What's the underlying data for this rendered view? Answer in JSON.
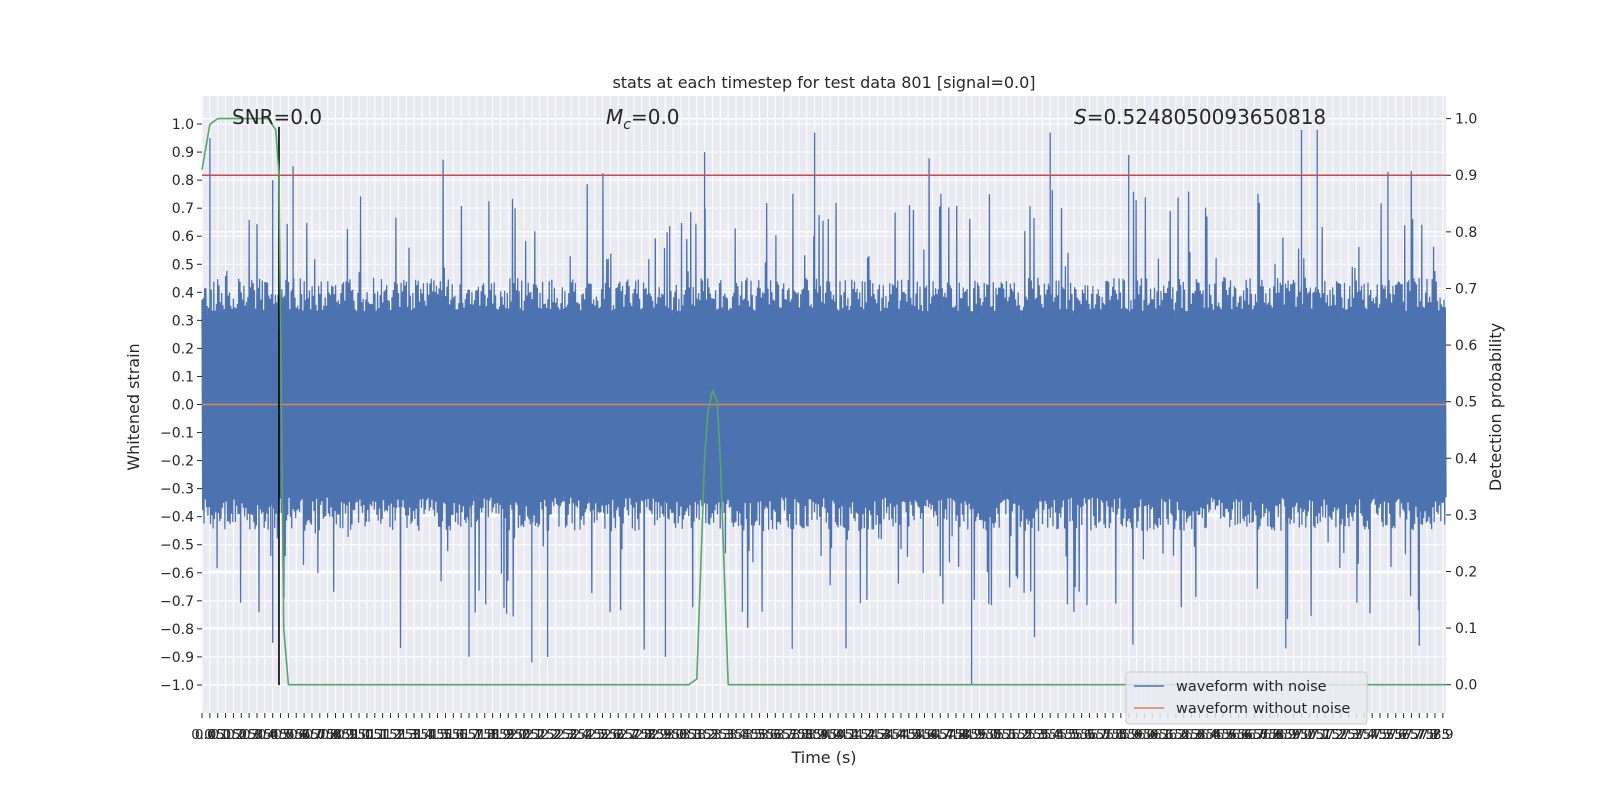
{
  "chart_data": {
    "type": "line",
    "title": "stats at each timestep for test data 801 [signal=0.0]",
    "xlabel": "Time (s)",
    "ylabel": "Whitened strain",
    "ylabel_right": "Detection probability",
    "xlim": [
      0.0,
      7.92
    ],
    "ylim": [
      -1.1,
      1.1
    ],
    "ylim_right": [
      -0.05,
      1.04
    ],
    "x_tick_step": 0.05,
    "x_ticks": [
      "0.0",
      "0.05",
      "0.1",
      "0.15",
      "0.2",
      "0.25",
      "0.3",
      "0.35",
      "0.4",
      "0.45",
      "0.5",
      "0.55",
      "0.6",
      "0.65",
      "0.7",
      "0.75",
      "0.8",
      "0.85",
      "0.9",
      "0.95",
      "1.0",
      "1.05",
      "1.1",
      "1.15",
      "1.2",
      "1.25",
      "1.3",
      "1.35",
      "1.4",
      "1.45",
      "1.5",
      "1.55",
      "1.6",
      "1.65",
      "1.7",
      "1.75",
      "1.8",
      "1.85",
      "1.9",
      "1.95",
      "2.0",
      "2.05",
      "2.1",
      "2.15",
      "2.2",
      "2.25",
      "2.3",
      "2.35",
      "2.4",
      "2.45",
      "2.5",
      "2.55",
      "2.6",
      "2.65",
      "2.7",
      "2.75",
      "2.8",
      "2.85",
      "2.9",
      "2.95",
      "3.0",
      "3.05",
      "3.1",
      "3.15",
      "3.2",
      "3.25",
      "3.3",
      "3.35",
      "3.4",
      "3.45",
      "3.5",
      "3.55",
      "3.6",
      "3.65",
      "3.7",
      "3.75",
      "3.8",
      "3.85",
      "3.9",
      "3.95",
      "4.0",
      "4.05",
      "4.1",
      "4.15",
      "4.2",
      "4.25",
      "4.3",
      "4.35",
      "4.4",
      "4.45",
      "4.5",
      "4.55",
      "4.6",
      "4.65",
      "4.7",
      "4.75",
      "4.8",
      "4.85",
      "4.9",
      "4.95",
      "5.0",
      "5.05",
      "5.1",
      "5.15",
      "5.2",
      "5.25",
      "5.3",
      "5.35",
      "5.4",
      "5.45",
      "5.5",
      "5.55",
      "5.6",
      "5.65",
      "5.7",
      "5.75",
      "5.8",
      "5.85",
      "5.9",
      "5.95",
      "6.0",
      "6.05",
      "6.1",
      "6.15",
      "6.2",
      "6.25",
      "6.3",
      "6.35",
      "6.4",
      "6.45",
      "6.5",
      "6.55",
      "6.6",
      "6.65",
      "6.7",
      "6.75",
      "6.8",
      "6.85",
      "6.9",
      "6.95",
      "7.0",
      "7.05",
      "7.1",
      "7.15",
      "7.2",
      "7.25",
      "7.3",
      "7.35",
      "7.4",
      "7.45",
      "7.5",
      "7.55",
      "7.6",
      "7.65",
      "7.7",
      "7.75",
      "7.8",
      "7.85",
      "7.9"
    ],
    "y_ticks": [
      "1.0",
      "0.9",
      "0.8",
      "0.7",
      "0.6",
      "0.5",
      "0.4",
      "0.3",
      "0.2",
      "0.1",
      "0.0",
      "−0.1",
      "−0.2",
      "−0.3",
      "−0.4",
      "−0.5",
      "−0.6",
      "−0.7",
      "−0.8",
      "−0.9",
      "−1.0"
    ],
    "y_ticks_right": [
      "1.0",
      "0.9",
      "0.8",
      "0.7",
      "0.6",
      "0.5",
      "0.4",
      "0.3",
      "0.2",
      "0.1",
      "0.0"
    ],
    "annotations": {
      "snr": "SNR=0.0",
      "mc_symbol": "M",
      "mc_subscript": "c",
      "mc_value": "=0.0",
      "s_symbol": "S",
      "s_value": "=0.5248050093650818"
    },
    "series": [
      {
        "name": "waveform with noise",
        "color": "#4c72b0",
        "axis": "left",
        "description_of_shape": "dense noise filling roughly -0.4..0.4 with spikes up to ~0.97 and down to -1.0",
        "spikes": [
          {
            "x": 0.05,
            "y": 0.95
          },
          {
            "x": 0.45,
            "y": 0.8
          },
          {
            "x": 0.58,
            "y": 0.85
          },
          {
            "x": 3.2,
            "y": 0.9
          },
          {
            "x": 3.9,
            "y": 0.97
          },
          {
            "x": 5.4,
            "y": 0.97
          },
          {
            "x": 5.9,
            "y": 0.89
          },
          {
            "x": 7.0,
            "y": 0.98
          },
          {
            "x": 7.1,
            "y": 0.98
          },
          {
            "x": 7.55,
            "y": 0.83
          },
          {
            "x": 0.45,
            "y": -0.85
          },
          {
            "x": 1.7,
            "y": -0.9
          },
          {
            "x": 2.1,
            "y": -0.92
          },
          {
            "x": 2.2,
            "y": -0.9
          },
          {
            "x": 2.95,
            "y": -0.9
          },
          {
            "x": 4.1,
            "y": -0.87
          },
          {
            "x": 4.9,
            "y": -1.0
          },
          {
            "x": 5.3,
            "y": -0.83
          },
          {
            "x": 6.9,
            "y": -0.87
          },
          {
            "x": 7.75,
            "y": -0.86
          }
        ]
      },
      {
        "name": "waveform without noise",
        "color": "#dd8452",
        "axis": "left",
        "x": [
          0.0,
          7.92
        ],
        "y": [
          0.0,
          0.0
        ]
      },
      {
        "color": "#55a868",
        "axis": "right",
        "x": [
          0.0,
          0.05,
          0.1,
          0.15,
          0.42,
          0.47,
          0.49,
          0.52,
          0.55,
          0.6,
          3.1,
          3.15,
          3.2,
          3.22,
          3.25,
          3.28,
          3.3,
          3.35,
          3.5,
          7.92
        ],
        "y": [
          0.91,
          0.99,
          1.0,
          1.0,
          1.0,
          0.98,
          0.9,
          0.1,
          0.0,
          0.0,
          0.0,
          0.01,
          0.4,
          0.48,
          0.52,
          0.5,
          0.4,
          0.0,
          0.0,
          0.0
        ]
      }
    ],
    "threshold_line": {
      "color": "#c44e52",
      "axis": "right",
      "y": 0.9
    },
    "marker_line": {
      "color": "#000000",
      "axis": "left",
      "x": 0.49,
      "y_range": [
        -1.0,
        0.99
      ]
    },
    "grid": true,
    "legend": {
      "placement": "bottom-right",
      "entries": [
        {
          "label": "waveform with noise",
          "color": "#4c72b0"
        },
        {
          "label": "waveform without noise",
          "color": "#dd8452"
        }
      ]
    }
  }
}
